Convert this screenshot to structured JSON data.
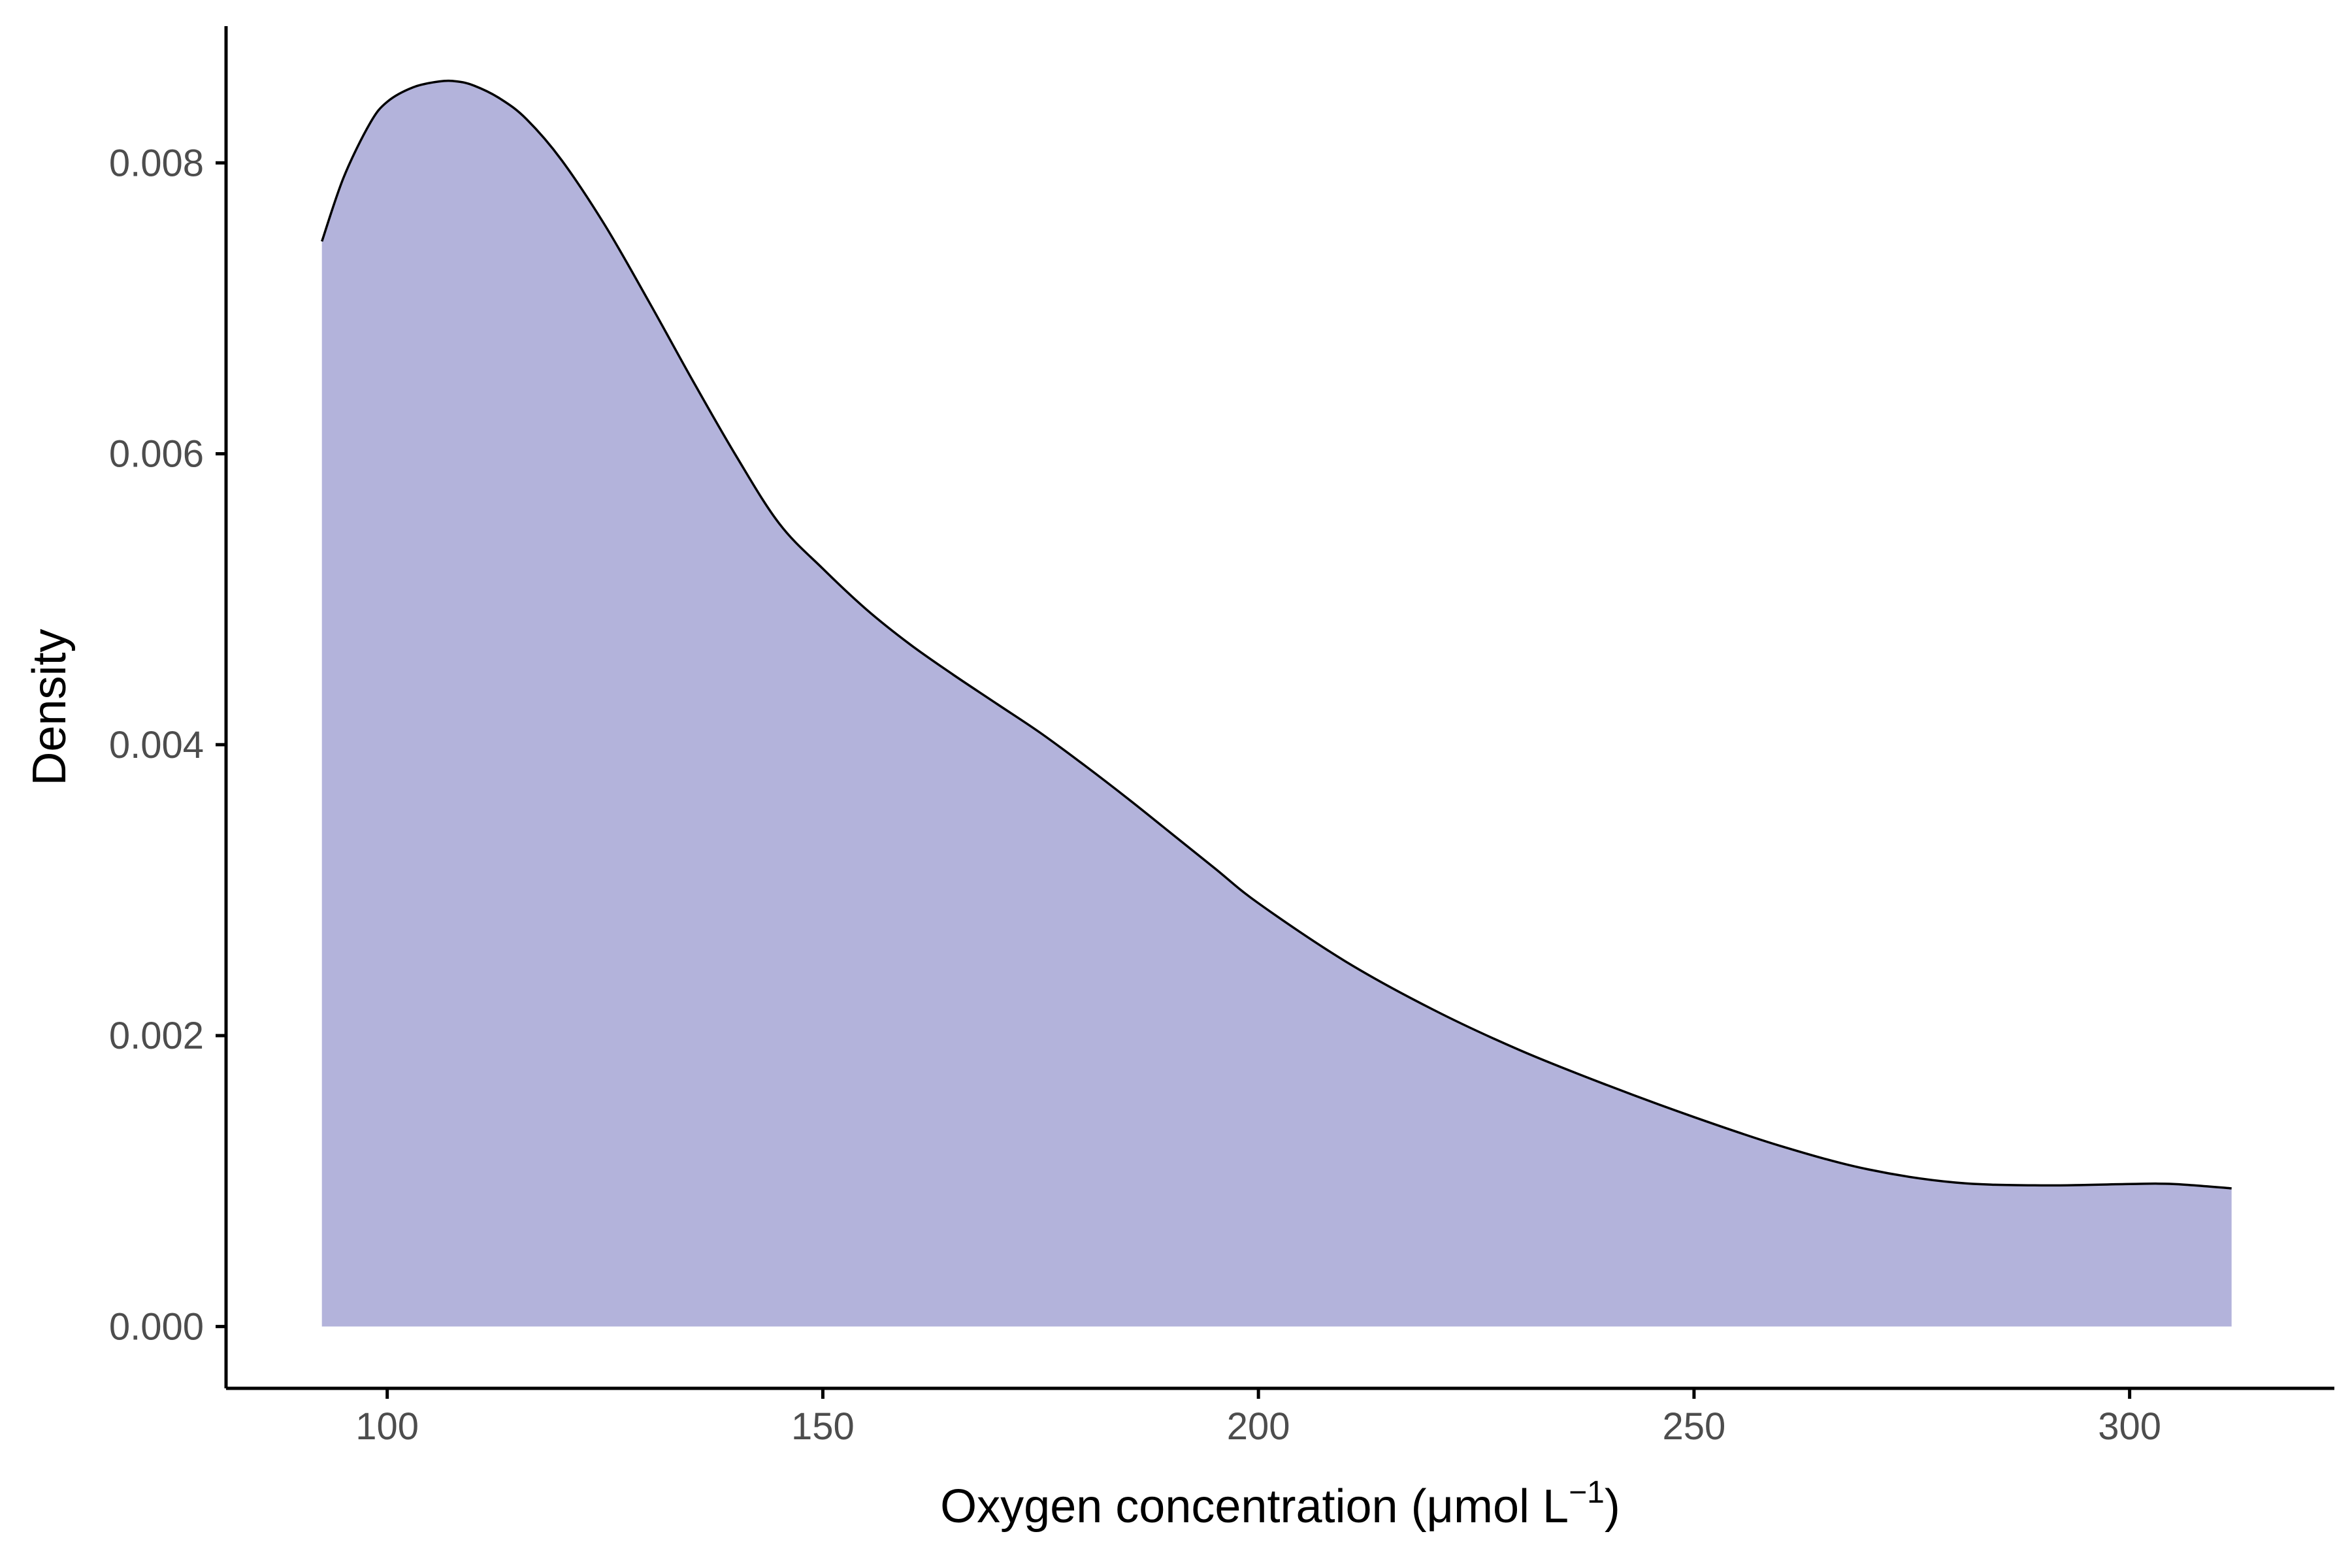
{
  "chart_data": {
    "type": "area",
    "title": "",
    "xlabel": "Oxygen concentration (μmol L",
    "xlabel_superscript": "−1",
    "xlabel_suffix": ")",
    "ylabel": "Density",
    "xlim": [
      81.5,
      323.5
    ],
    "ylim": [
      -0.000425,
      0.00894
    ],
    "x_ticks": [
      100,
      150,
      200,
      250,
      300
    ],
    "x_tick_labels": [
      "100",
      "150",
      "200",
      "250",
      "300"
    ],
    "y_ticks": [
      0,
      0.002,
      0.004,
      0.006,
      0.008
    ],
    "y_tick_labels": [
      "0.000",
      "0.002",
      "0.004",
      "0.006",
      "0.008"
    ],
    "grid": false,
    "legend": "none",
    "fill_color": "#b3b3db",
    "line_color": "#000000",
    "series": [
      {
        "x": [
          92.5,
          95,
          98,
          100,
          103,
          106,
          108,
          110,
          113,
          116,
          120,
          125,
          130,
          135,
          140,
          145,
          150,
          155,
          160,
          165,
          170,
          175,
          180,
          185,
          190,
          195,
          200,
          210,
          220,
          230,
          240,
          250,
          260,
          270,
          280,
          290,
          300,
          305,
          311.7
        ],
        "y": [
          0.00746,
          0.0079,
          0.00827,
          0.00842,
          0.00852,
          0.00856,
          0.00856,
          0.00853,
          0.00844,
          0.0083,
          0.00802,
          0.00757,
          0.00705,
          0.00651,
          0.00599,
          0.00552,
          0.00521,
          0.00493,
          0.00469,
          0.00448,
          0.00428,
          0.00408,
          0.00386,
          0.00363,
          0.00339,
          0.00315,
          0.00291,
          0.00251,
          0.00218,
          0.0019,
          0.00166,
          0.00144,
          0.00124,
          0.00108,
          0.00099,
          0.00097,
          0.00098,
          0.00098,
          0.00095
        ]
      }
    ]
  }
}
